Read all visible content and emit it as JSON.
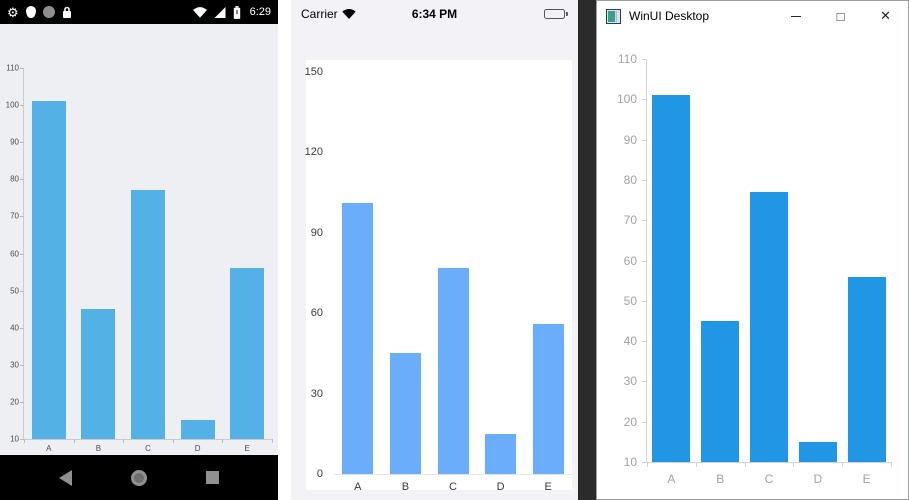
{
  "android": {
    "status": {
      "time": "6:29"
    }
  },
  "ios": {
    "status": {
      "carrier": "Carrier",
      "time": "6:34 PM"
    }
  },
  "winui": {
    "title": "WinUI Desktop",
    "controls": {
      "minimize": "",
      "maximize": "□",
      "close": "✕"
    }
  },
  "chart_data": [
    {
      "id": "android-chart",
      "type": "bar",
      "platform": "Android",
      "title": "",
      "xlabel": "",
      "ylabel": "",
      "categories": [
        "A",
        "B",
        "C",
        "D",
        "E"
      ],
      "values": [
        101,
        45,
        77,
        15,
        56
      ],
      "ylim": [
        10,
        110
      ],
      "yticks": [
        10,
        20,
        30,
        40,
        50,
        60,
        70,
        80,
        90,
        100,
        110
      ],
      "bar_color": "#53B1E5",
      "grid": false,
      "legend": false
    },
    {
      "id": "ios-chart",
      "type": "bar",
      "platform": "iOS",
      "title": "",
      "xlabel": "",
      "ylabel": "",
      "categories": [
        "A",
        "B",
        "C",
        "D",
        "E"
      ],
      "values": [
        101,
        45,
        77,
        15,
        56
      ],
      "ylim": [
        0,
        150
      ],
      "yticks": [
        0,
        30,
        60,
        90,
        120,
        150
      ],
      "bar_color": "#6BADFB",
      "grid": false,
      "legend": false
    },
    {
      "id": "winui-chart",
      "type": "bar",
      "platform": "WinUI",
      "title": "",
      "xlabel": "",
      "ylabel": "",
      "categories": [
        "A",
        "B",
        "C",
        "D",
        "E"
      ],
      "values": [
        101,
        45,
        77,
        15,
        56
      ],
      "ylim": [
        10,
        110
      ],
      "yticks": [
        10,
        20,
        30,
        40,
        50,
        60,
        70,
        80,
        90,
        100,
        110
      ],
      "bar_color": "#2196E3",
      "grid": false,
      "legend": false
    }
  ]
}
